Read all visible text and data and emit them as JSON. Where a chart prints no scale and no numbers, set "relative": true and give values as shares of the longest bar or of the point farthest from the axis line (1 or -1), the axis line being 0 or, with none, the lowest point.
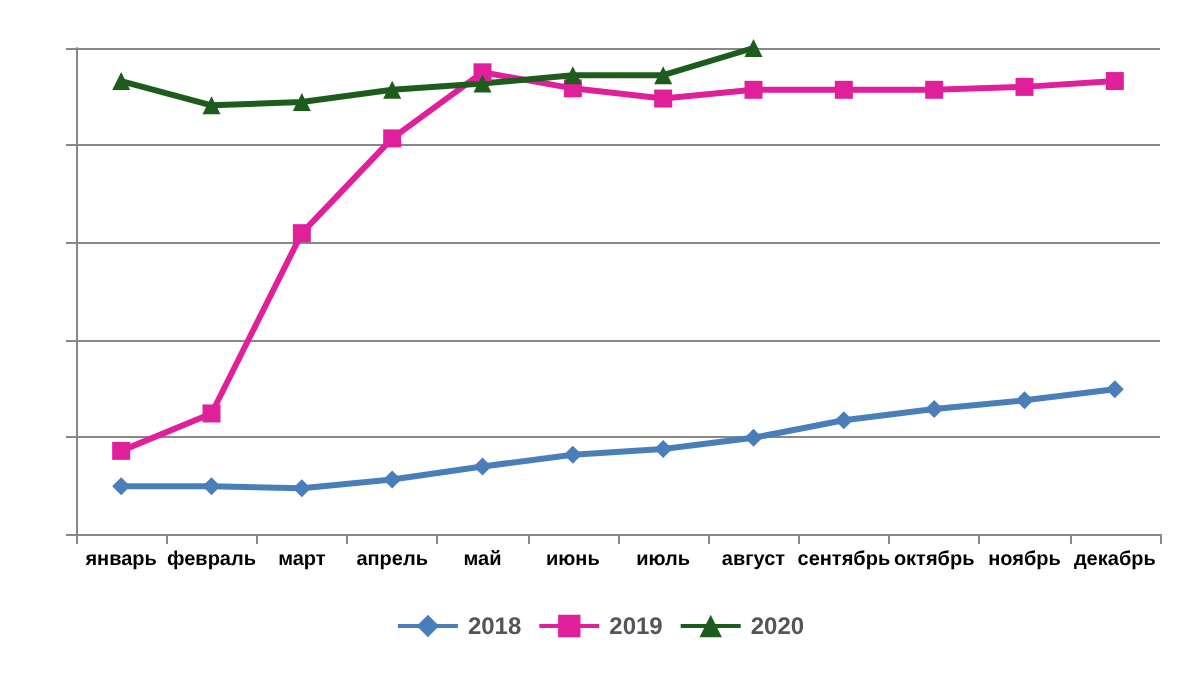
{
  "chart_data": {
    "type": "line",
    "relative": true,
    "grid": "y",
    "legend": "bottom",
    "categories": [
      "январь",
      "февраль",
      "март",
      "апрель",
      "май",
      "июнь",
      "июль",
      "август",
      "сентябрь",
      "октябрь",
      "ноябрь",
      "декабрь"
    ],
    "series": [
      {
        "name": "2018",
        "color": "#4a7ebb",
        "marker": "diamond",
        "values": [
          0.098,
          0.098,
          0.094,
          0.112,
          0.139,
          0.163,
          0.175,
          0.198,
          0.234,
          0.257,
          0.275,
          0.298
        ]
      },
      {
        "name": "2019",
        "color": "#e0209a",
        "marker": "square",
        "values": [
          0.171,
          0.248,
          0.619,
          0.814,
          0.95,
          0.917,
          0.896,
          0.914,
          0.914,
          0.914,
          0.92,
          0.932
        ]
      },
      {
        "name": "2020",
        "color": "#1e5c1e",
        "marker": "triangle",
        "values": [
          0.932,
          0.882,
          0.889,
          0.914,
          0.927,
          0.944,
          0.944,
          1,
          null,
          null,
          null,
          null
        ]
      }
    ]
  }
}
